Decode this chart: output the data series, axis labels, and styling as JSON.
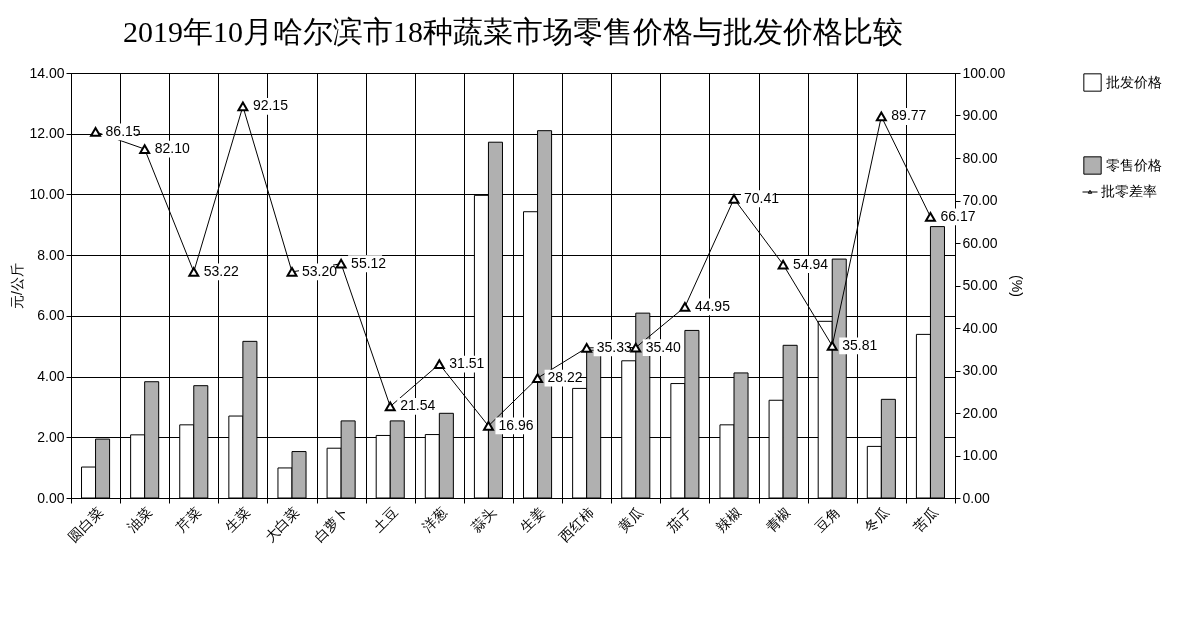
{
  "chart_data": {
    "type": "bar",
    "title": "2019年10月哈尔滨市18种蔬菜市场零售价格与批发价格比较",
    "ylabel": "元/公斤",
    "y2label": "(%)",
    "categories": [
      "圆白菜",
      "油菜",
      "芹菜",
      "生菜",
      "大白菜",
      "白萝卜",
      "土豆",
      "洋葱",
      "蒜头",
      "生姜",
      "西红柿",
      "黄瓜",
      "茄子",
      "辣椒",
      "青椒",
      "豆角",
      "冬瓜",
      "苦瓜"
    ],
    "series": [
      {
        "name": "批发价格",
        "color": "#ffffff",
        "values": [
          1.02,
          2.08,
          2.41,
          2.7,
          0.99,
          1.64,
          2.06,
          2.09,
          9.97,
          9.43,
          3.61,
          4.52,
          3.77,
          2.41,
          3.22,
          5.82,
          1.7,
          5.39
        ]
      },
      {
        "name": "零售价格",
        "color": "#b0b0b0",
        "values": [
          1.94,
          3.83,
          3.7,
          5.16,
          1.53,
          2.54,
          2.54,
          2.79,
          11.72,
          12.1,
          4.87,
          6.09,
          5.52,
          4.12,
          5.03,
          7.87,
          3.25,
          8.94
        ]
      },
      {
        "name": "批零差率",
        "type": "line",
        "axis": "y2",
        "color": "#000000",
        "marker": "triangle",
        "values": [
          86.15,
          82.1,
          53.22,
          92.15,
          53.2,
          55.12,
          21.54,
          31.51,
          16.96,
          28.22,
          35.33,
          35.4,
          44.95,
          70.41,
          54.94,
          35.81,
          89.77,
          66.17
        ],
        "value_labels": [
          "86.15",
          "82.10",
          "53.22",
          "92.15",
          "53.20",
          "55.12",
          "21.54",
          "31.51",
          "16.96",
          "28.22",
          "35.33",
          "35.40",
          "44.95",
          "70.41",
          "54.94",
          "35.81",
          "89.77",
          "66.17"
        ]
      }
    ],
    "ylim": [
      0,
      14
    ],
    "yticks": [
      {
        "value": 0,
        "label": "0.00"
      },
      {
        "value": 2,
        "label": "2.00"
      },
      {
        "value": 4,
        "label": "4.00"
      },
      {
        "value": 6,
        "label": "6.00"
      },
      {
        "value": 8,
        "label": "8.00"
      },
      {
        "value": 10,
        "label": "10.00"
      },
      {
        "value": 12,
        "label": "12.00"
      },
      {
        "value": 14,
        "label": "14.00"
      }
    ],
    "y2lim": [
      0,
      100
    ],
    "y2ticks": [
      {
        "value": 0,
        "label": "0.00"
      },
      {
        "value": 10,
        "label": "10.00"
      },
      {
        "value": 20,
        "label": "20.00"
      },
      {
        "value": 30,
        "label": "30.00"
      },
      {
        "value": 40,
        "label": "40.00"
      },
      {
        "value": 50,
        "label": "50.00"
      },
      {
        "value": 60,
        "label": "60.00"
      },
      {
        "value": 70,
        "label": "70.00"
      },
      {
        "value": 80,
        "label": "80.00"
      },
      {
        "value": 90,
        "label": "90.00"
      },
      {
        "value": 100,
        "label": "100.00"
      }
    ],
    "grid": true,
    "legend": "right"
  }
}
